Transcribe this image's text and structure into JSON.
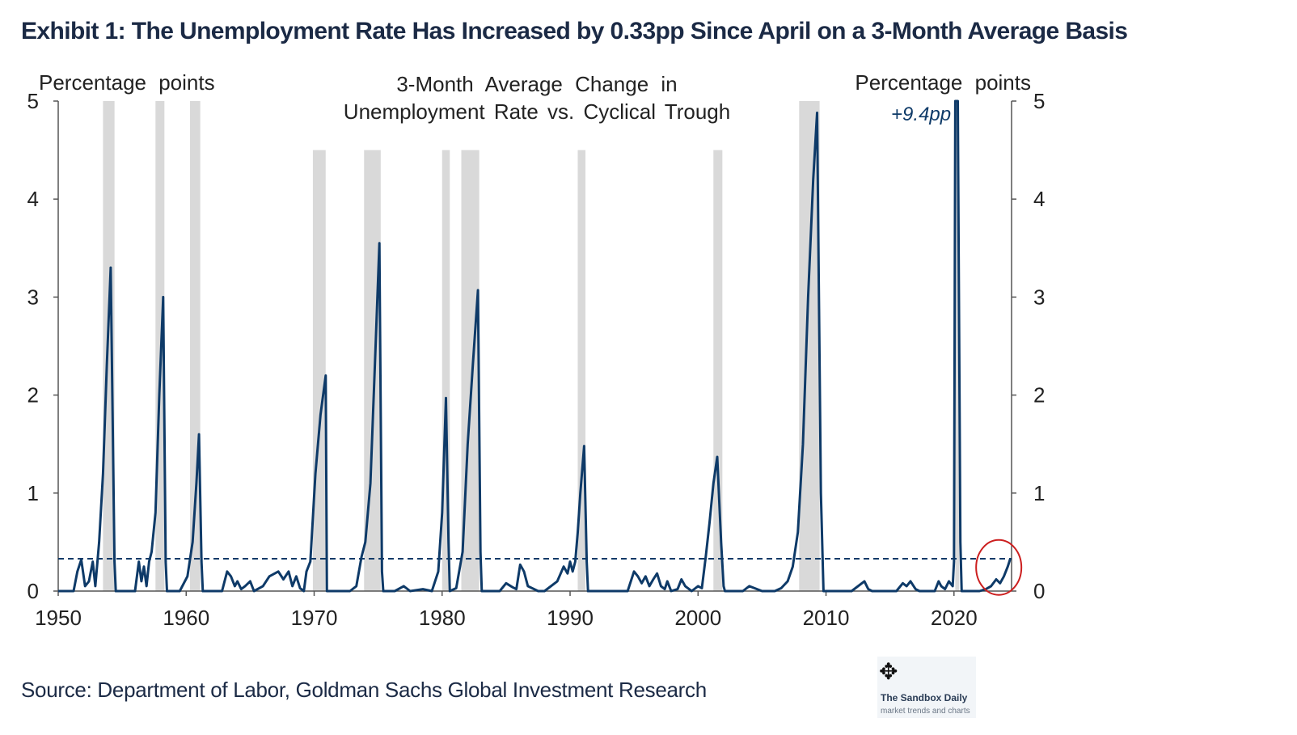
{
  "title": "Exhibit 1: The Unemployment Rate Has Increased by 0.33pp Since April on a 3-Month Average Basis",
  "source": "Source: Department of Labor, Goldman Sachs Global Investment Research",
  "logo": {
    "name": "The Sandbox Daily",
    "tagline": "market trends and charts",
    "icon": "move-arrows-icon"
  },
  "colors": {
    "line": "#0e3a68",
    "recession": "#d9d9d9",
    "text": "#1b2a45",
    "highlight_circle": "#cc1f1f",
    "axis": "#555555"
  },
  "chart_data": {
    "type": "line",
    "title": "3-Month Average Change in Unemployment Rate vs. Cyclical Trough",
    "title_lines": [
      "3-Month Average Change in",
      "Unemployment Rate vs. Cyclical Trough"
    ],
    "ylabel_left": "Percentage points",
    "ylabel_right": "Percentage points",
    "xlim": [
      1950,
      2024.5
    ],
    "ylim": [
      0,
      5
    ],
    "x_ticks": [
      1950,
      1960,
      1970,
      1980,
      1990,
      2000,
      2010,
      2020
    ],
    "y_ticks": [
      0,
      1,
      2,
      3,
      4,
      5
    ],
    "reference_line": {
      "value": 0.33,
      "style": "dashed"
    },
    "annotation": {
      "text": "+9.4pp",
      "x": 2020.4,
      "y": 5
    },
    "highlight": {
      "x": 2023.5,
      "y": 0.2,
      "shape": "circle"
    },
    "recessions": [
      [
        1953.5,
        1954.4
      ],
      [
        1957.6,
        1958.3
      ],
      [
        1960.3,
        1961.1
      ],
      [
        1969.9,
        1970.9
      ],
      [
        1973.9,
        1975.2
      ],
      [
        1980.0,
        1980.6
      ],
      [
        1981.5,
        1982.9
      ],
      [
        1990.6,
        1991.2
      ],
      [
        2001.2,
        2001.9
      ],
      [
        2007.9,
        2009.5
      ],
      [
        2020.1,
        2020.4
      ]
    ],
    "series": [
      {
        "x": [
          1950.0,
          1951.2,
          1951.5,
          1951.8,
          1952.1,
          1952.4,
          1952.7,
          1952.9,
          1953.2,
          1953.5,
          1953.8,
          1954.1,
          1954.4,
          1954.5,
          1956.0,
          1956.3,
          1956.5,
          1956.7,
          1956.9,
          1957.1,
          1957.3,
          1957.6,
          1957.9,
          1958.2,
          1958.4,
          1958.5,
          1959.5,
          1960.1,
          1960.5,
          1960.8,
          1961.0,
          1961.2,
          1961.3,
          1962.8,
          1963.2,
          1963.5,
          1963.8,
          1964.0,
          1964.3,
          1964.6,
          1965.0,
          1965.3,
          1966.0,
          1966.5,
          1967.2,
          1967.6,
          1968.0,
          1968.3,
          1968.6,
          1968.9,
          1969.2,
          1969.4,
          1969.7,
          1970.1,
          1970.5,
          1970.9,
          1971.0,
          1972.8,
          1973.3,
          1973.7,
          1974.0,
          1974.4,
          1974.8,
          1975.1,
          1975.3,
          1975.4,
          1976.3,
          1977.0,
          1977.5,
          1978.5,
          1979.2,
          1979.7,
          1980.0,
          1980.3,
          1980.5,
          1980.6,
          1981.1,
          1981.6,
          1982.0,
          1982.4,
          1982.8,
          1983.0,
          1983.1,
          1984.5,
          1985.0,
          1985.5,
          1985.8,
          1986.1,
          1986.4,
          1986.7,
          1987.5,
          1988.0,
          1989.0,
          1989.5,
          1989.8,
          1990.0,
          1990.2,
          1990.4,
          1990.6,
          1990.8,
          1991.1,
          1991.3,
          1991.4,
          1994.5,
          1995.0,
          1995.3,
          1995.6,
          1995.9,
          1996.2,
          1996.5,
          1996.8,
          1997.1,
          1997.4,
          1997.6,
          1997.9,
          1998.4,
          1998.7,
          1999.0,
          1999.5,
          2000.0,
          2000.3,
          2000.6,
          2000.9,
          2001.2,
          2001.5,
          2001.8,
          2002.0,
          2002.1,
          2003.5,
          2004.0,
          2005.0,
          2006.0,
          2006.5,
          2007.0,
          2007.4,
          2007.8,
          2008.2,
          2008.6,
          2009.0,
          2009.3,
          2009.6,
          2009.8,
          2011.0,
          2012.0,
          2013.0,
          2013.3,
          2013.6,
          2014.5,
          2015.5,
          2016.0,
          2016.3,
          2016.6,
          2017.0,
          2017.3,
          2017.5,
          2018.0,
          2018.5,
          2018.8,
          2019.0,
          2019.3,
          2019.6,
          2019.9,
          2020.0,
          2020.1,
          2020.3,
          2020.5,
          2020.6,
          2021.5,
          2022.0,
          2022.5,
          2022.9,
          2023.3,
          2023.6,
          2023.9,
          2024.2,
          2024.4
        ],
        "y": [
          0,
          0,
          0.2,
          0.32,
          0.05,
          0.1,
          0.3,
          0.05,
          0.5,
          1.2,
          2.3,
          3.3,
          0.3,
          0,
          0,
          0.3,
          0.1,
          0.25,
          0.05,
          0.3,
          0.4,
          0.8,
          2.0,
          3.0,
          0.3,
          0,
          0,
          0.15,
          0.5,
          1.1,
          1.6,
          0.3,
          0,
          0,
          0.2,
          0.15,
          0.05,
          0.1,
          0.02,
          0.05,
          0.1,
          0,
          0.05,
          0.15,
          0.2,
          0.12,
          0.2,
          0.05,
          0.15,
          0.03,
          0,
          0.2,
          0.3,
          1.2,
          1.8,
          2.2,
          0,
          0,
          0.05,
          0.35,
          0.5,
          1.1,
          2.5,
          3.55,
          0.2,
          0,
          0,
          0.05,
          0,
          0.02,
          0,
          0.2,
          0.8,
          1.97,
          0.5,
          0,
          0.03,
          0.4,
          1.5,
          2.3,
          3.07,
          0.4,
          0,
          0,
          0.08,
          0.04,
          0.02,
          0.27,
          0.2,
          0.05,
          0,
          0,
          0.1,
          0.25,
          0.18,
          0.3,
          0.2,
          0.3,
          0.6,
          1.0,
          1.48,
          0.3,
          0,
          0,
          0.2,
          0.15,
          0.08,
          0.15,
          0.05,
          0.12,
          0.18,
          0.05,
          0.02,
          0.1,
          0,
          0.02,
          0.12,
          0.05,
          0,
          0.05,
          0.03,
          0.35,
          0.7,
          1.1,
          1.37,
          0.5,
          0.05,
          0,
          0,
          0.05,
          0,
          0,
          0.03,
          0.1,
          0.25,
          0.6,
          1.5,
          3.0,
          4.2,
          4.88,
          1.0,
          0,
          0,
          0,
          0.1,
          0.02,
          0,
          0,
          0,
          0.08,
          0.05,
          0.1,
          0.02,
          0,
          0,
          0,
          0,
          0.1,
          0.05,
          0.02,
          0.1,
          0.05,
          0.3,
          5.0,
          5.0,
          0.5,
          0,
          0,
          0,
          0.02,
          0.05,
          0.12,
          0.08,
          0.15,
          0.25,
          0.33
        ]
      }
    ]
  }
}
